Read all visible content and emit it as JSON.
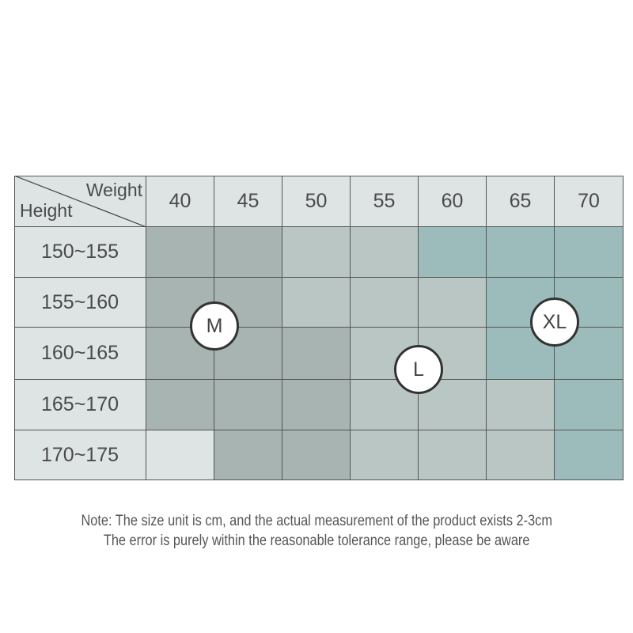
{
  "chart_data": {
    "type": "table",
    "corner": {
      "column_axis_label": "Weight",
      "row_axis_label": "Height"
    },
    "columns": [
      "40",
      "45",
      "50",
      "55",
      "60",
      "65",
      "70"
    ],
    "rows": [
      "150~155",
      "155~160",
      "160~165",
      "165~170",
      "170~175"
    ],
    "size_grid": [
      [
        "M",
        "M",
        "L",
        "L",
        "XL",
        "XL",
        "XL"
      ],
      [
        "M",
        "M",
        "L",
        "L",
        "L",
        "XL",
        "XL"
      ],
      [
        "M",
        "M",
        "M",
        "L",
        "L",
        "XL",
        "XL"
      ],
      [
        "M",
        "M",
        "M",
        "L",
        "L",
        "L",
        "XL"
      ],
      [
        "",
        "M",
        "M",
        "L",
        "L",
        "L",
        "XL"
      ]
    ],
    "size_labels": [
      "M",
      "L",
      "XL"
    ]
  },
  "colors": {
    "header": "#dde4e3",
    "M": "#a7b4b2",
    "L": "#b9c6c4",
    "XL": "#9cbbbb",
    "empty": "#dde4e3",
    "grid": "#555555"
  },
  "note": {
    "line1": "Note: The size unit is cm, and the actual measurement of the product exists 2-3cm",
    "line2": "The error is purely within the reasonable tolerance range, please be aware"
  }
}
